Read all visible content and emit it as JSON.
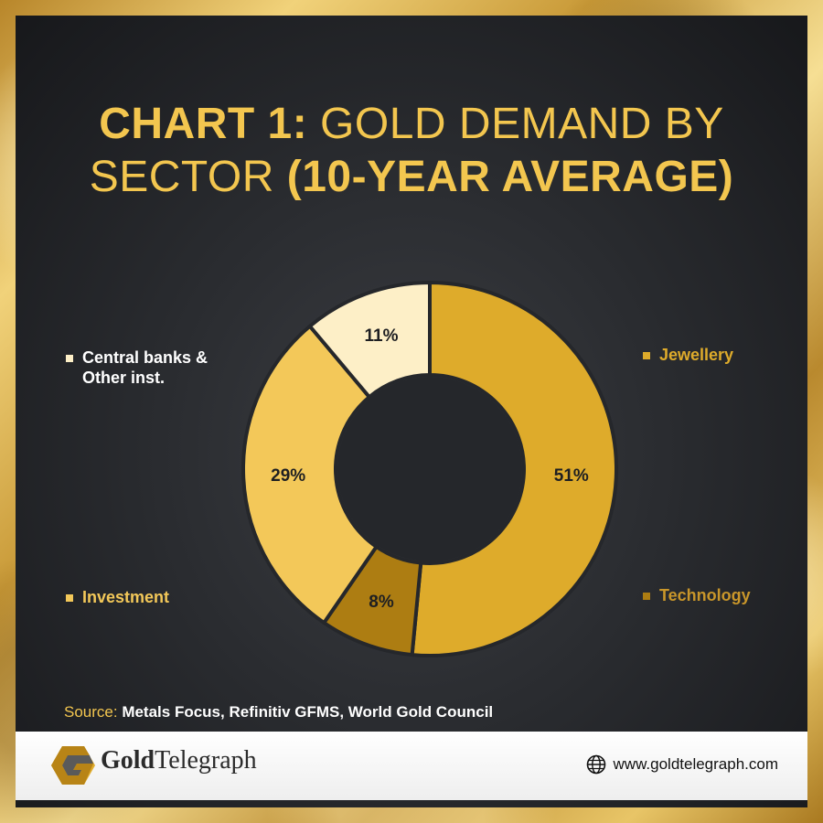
{
  "title": {
    "bold1": "CHART 1:",
    "regular1": " GOLD DEMAND BY SECTOR ",
    "bold2": "(10-YEAR AVERAGE)"
  },
  "chart_data": {
    "type": "pie",
    "title": "CHART 1: GOLD DEMAND BY SECTOR (10-YEAR AVERAGE)",
    "donut": true,
    "slices": [
      {
        "label": "Jewellery",
        "value": 51,
        "value_label": "51%",
        "color": "#deab2b"
      },
      {
        "label": "Technology",
        "value": 8,
        "value_label": "8%",
        "color": "#ad7d12"
      },
      {
        "label": "Investment",
        "value": 29,
        "value_label": "29%",
        "color": "#f3c859"
      },
      {
        "label": "Central banks & Other inst.",
        "value": 11,
        "value_label": "11%",
        "color": "#fdefc7"
      }
    ],
    "legend": [
      {
        "label": "Jewellery",
        "color": "#deab2b"
      },
      {
        "label": "Technology",
        "color": "#ad7d12"
      },
      {
        "label": "Investment",
        "color": "#f3c859"
      },
      {
        "label": "Central banks & Other inst.",
        "color": "#fdefc7"
      }
    ]
  },
  "legend_lines": {
    "central_line1": "Central banks &",
    "central_line2": "Other inst."
  },
  "source": {
    "label": "Source:",
    "text": " Metals Focus, Refinitiv GFMS, World Gold Council"
  },
  "footer": {
    "brand_bold": "Gold",
    "brand_rest": "Telegraph",
    "website": "www.goldtelegraph.com"
  },
  "icons": {
    "logo": "goldtelegraph-logo-icon",
    "globe": "globe-icon"
  }
}
